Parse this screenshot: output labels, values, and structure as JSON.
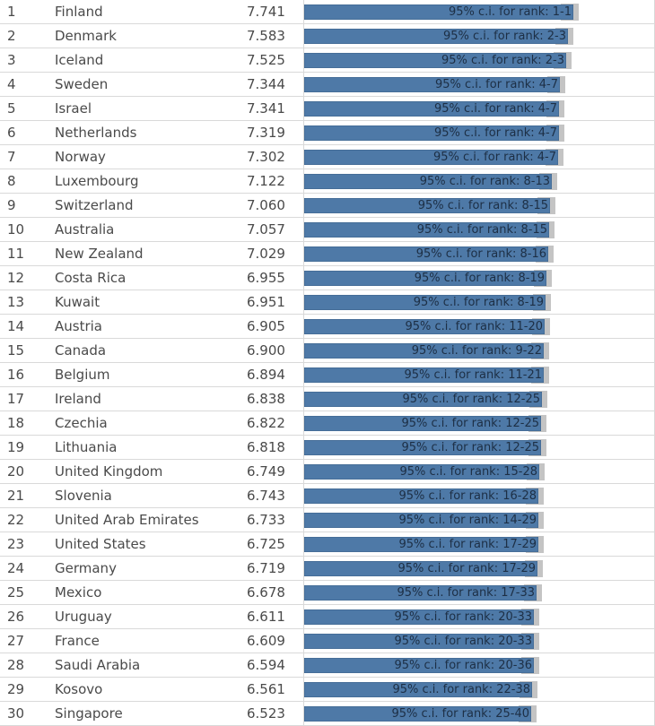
{
  "chart_data": {
    "type": "bar",
    "scale_domain": [
      0,
      7.741
    ],
    "ci_label_prefix": "95% c.i. for rank: ",
    "rows": [
      {
        "rank": "1",
        "country": "Finland",
        "score": 7.741,
        "ci": "1-1"
      },
      {
        "rank": "2",
        "country": "Denmark",
        "score": 7.583,
        "ci": "2-3"
      },
      {
        "rank": "3",
        "country": "Iceland",
        "score": 7.525,
        "ci": "2-3"
      },
      {
        "rank": "4",
        "country": "Sweden",
        "score": 7.344,
        "ci": "4-7"
      },
      {
        "rank": "5",
        "country": "Israel",
        "score": 7.341,
        "ci": "4-7"
      },
      {
        "rank": "6",
        "country": "Netherlands",
        "score": 7.319,
        "ci": "4-7"
      },
      {
        "rank": "7",
        "country": "Norway",
        "score": 7.302,
        "ci": "4-7"
      },
      {
        "rank": "8",
        "country": "Luxembourg",
        "score": 7.122,
        "ci": "8-13"
      },
      {
        "rank": "9",
        "country": "Switzerland",
        "score": 7.06,
        "ci": "8-15"
      },
      {
        "rank": "10",
        "country": "Australia",
        "score": 7.057,
        "ci": "8-15"
      },
      {
        "rank": "11",
        "country": "New Zealand",
        "score": 7.029,
        "ci": "8-16"
      },
      {
        "rank": "12",
        "country": "Costa Rica",
        "score": 6.955,
        "ci": "8-19"
      },
      {
        "rank": "13",
        "country": "Kuwait",
        "score": 6.951,
        "ci": "8-19"
      },
      {
        "rank": "14",
        "country": "Austria",
        "score": 6.905,
        "ci": "11-20"
      },
      {
        "rank": "15",
        "country": "Canada",
        "score": 6.9,
        "ci": "9-22"
      },
      {
        "rank": "16",
        "country": "Belgium",
        "score": 6.894,
        "ci": "11-21"
      },
      {
        "rank": "17",
        "country": "Ireland",
        "score": 6.838,
        "ci": "12-25"
      },
      {
        "rank": "18",
        "country": "Czechia",
        "score": 6.822,
        "ci": "12-25"
      },
      {
        "rank": "19",
        "country": "Lithuania",
        "score": 6.818,
        "ci": "12-25"
      },
      {
        "rank": "20",
        "country": "United Kingdom",
        "score": 6.749,
        "ci": "15-28"
      },
      {
        "rank": "21",
        "country": "Slovenia",
        "score": 6.743,
        "ci": "16-28"
      },
      {
        "rank": "22",
        "country": "United Arab Emirates",
        "score": 6.733,
        "ci": "14-29"
      },
      {
        "rank": "23",
        "country": "United States",
        "score": 6.725,
        "ci": "17-29"
      },
      {
        "rank": "24",
        "country": "Germany",
        "score": 6.719,
        "ci": "17-29"
      },
      {
        "rank": "25",
        "country": "Mexico",
        "score": 6.678,
        "ci": "17-33"
      },
      {
        "rank": "26",
        "country": "Uruguay",
        "score": 6.611,
        "ci": "20-33"
      },
      {
        "rank": "27",
        "country": "France",
        "score": 6.609,
        "ci": "20-33"
      },
      {
        "rank": "28",
        "country": "Saudi Arabia",
        "score": 6.594,
        "ci": "20-36"
      },
      {
        "rank": "29",
        "country": "Kosovo",
        "score": 6.561,
        "ci": "22-38"
      },
      {
        "rank": "30",
        "country": "Singapore",
        "score": 6.523,
        "ci": "25-40"
      }
    ]
  },
  "colors": {
    "bar": "#4e79a7",
    "whisker": "#c4c4c4",
    "text": "#4a4a4a",
    "ci_text": "#1d2f45",
    "grid": "#d9d9d9"
  }
}
